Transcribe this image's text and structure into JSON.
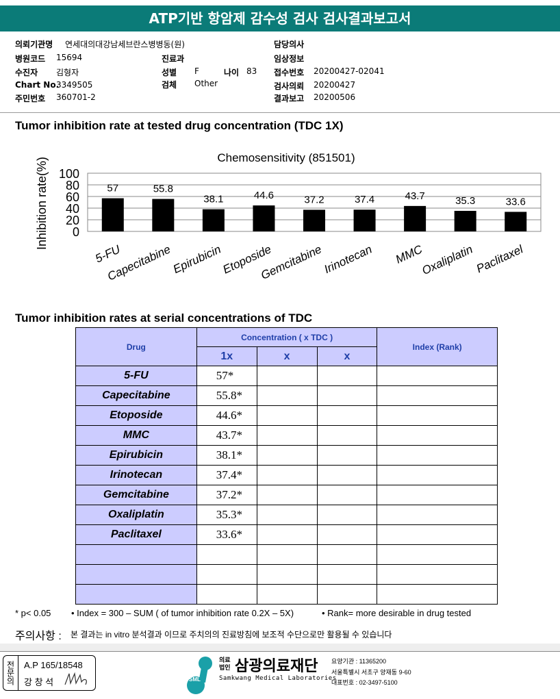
{
  "header": {
    "title": "ATP기반 항암제 감수성 검사 검사결과보고서"
  },
  "patient": {
    "institution_label": "의뢰기관명",
    "institution": "연세대의대강남세브란스병병동(원)",
    "hospital_code_label": "병원코드",
    "hospital_code": "15694",
    "patient_label": "수진자",
    "patient": "김형자",
    "chart_label": "Chart No.",
    "chart": "3349505",
    "id_label": "주민번호",
    "id": "360701-2",
    "dept_label": "진료과",
    "dept": "",
    "sex_label": "성별",
    "sex": "F",
    "age_label": "나이",
    "age": "83",
    "specimen_label": "검체",
    "specimen": "Other",
    "doctor_label": "담당의사",
    "clinical_label": "임상정보",
    "receipt_label": "접수번호",
    "receipt": "20200427-02041",
    "request_label": "검사의뢰",
    "request": "20200427",
    "report_label": "결과보고",
    "report": "20200506"
  },
  "section1_title": "Tumor inhibition rate at tested drug concentration (TDC 1X)",
  "chart_data": {
    "type": "bar",
    "title": "Chemosensitivity (851501)",
    "ylabel": "Inhibition rate(%)",
    "xlabel": "",
    "ylim": [
      0,
      100
    ],
    "yticks": [
      "0",
      "20",
      "40",
      "60",
      "80",
      "100"
    ],
    "categories": [
      "5-FU",
      "Capecitabine",
      "Epirubicin",
      "Etoposide",
      "Gemcitabine",
      "Irinotecan",
      "MMC",
      "Oxaliplatin",
      "Paclitaxel"
    ],
    "values": [
      57,
      55.8,
      38.1,
      44.6,
      37.2,
      37.4,
      43.7,
      35.3,
      33.6
    ],
    "labels": [
      "57",
      "55.8",
      "38.1",
      "44.6",
      "37.2",
      "37.4",
      "43.7",
      "35.3",
      "33.6"
    ],
    "grid": true
  },
  "section2_title": "Tumor inhibition rates at serial concentrations of TDC",
  "table": {
    "drug_header": "Drug",
    "conc_header": "Concentration ( x TDC )",
    "index_header": "Index (Rank)",
    "sub": [
      "1x",
      "x",
      "x"
    ],
    "rows": [
      {
        "drug": "5-FU",
        "v": "57*"
      },
      {
        "drug": "Capecitabine",
        "v": "55.8*"
      },
      {
        "drug": "Etoposide",
        "v": "44.6*"
      },
      {
        "drug": "MMC",
        "v": "43.7*"
      },
      {
        "drug": "Epirubicin",
        "v": "38.1*"
      },
      {
        "drug": "Irinotecan",
        "v": "37.4*"
      },
      {
        "drug": "Gemcitabine",
        "v": "37.2*"
      },
      {
        "drug": "Oxaliplatin",
        "v": "35.3*"
      },
      {
        "drug": "Paclitaxel",
        "v": "33.6*"
      },
      {
        "drug": "",
        "v": ""
      },
      {
        "drug": "",
        "v": ""
      },
      {
        "drug": "",
        "v": ""
      }
    ]
  },
  "notes": {
    "p": "* p< 0.05",
    "index": "• Index = 300 – SUM ( of tumor inhibition rate 0.2X  –  5X)",
    "rank": "• Rank= more desirable in drug tested",
    "caution_label": "주의사항 :",
    "caution": "본 결과는 in vitro 분석결과 이므로 주치의의 진료방침에 보조적 수단으로만 활용될 수 있습니다"
  },
  "footer": {
    "stamp_vertical": "전문의",
    "ap": "A.P 165/18548",
    "doctor": "강 창 석",
    "org_prefix": "의료 법인",
    "org": "삼광의료재단",
    "org_en": "Samkwang Medical Laboratories",
    "logo": "SML",
    "code": "요양기관 : 11365200",
    "address": "서울특별시 서초구 양재동 9-60",
    "phone": "대표번호 : 02-3497-5100"
  }
}
